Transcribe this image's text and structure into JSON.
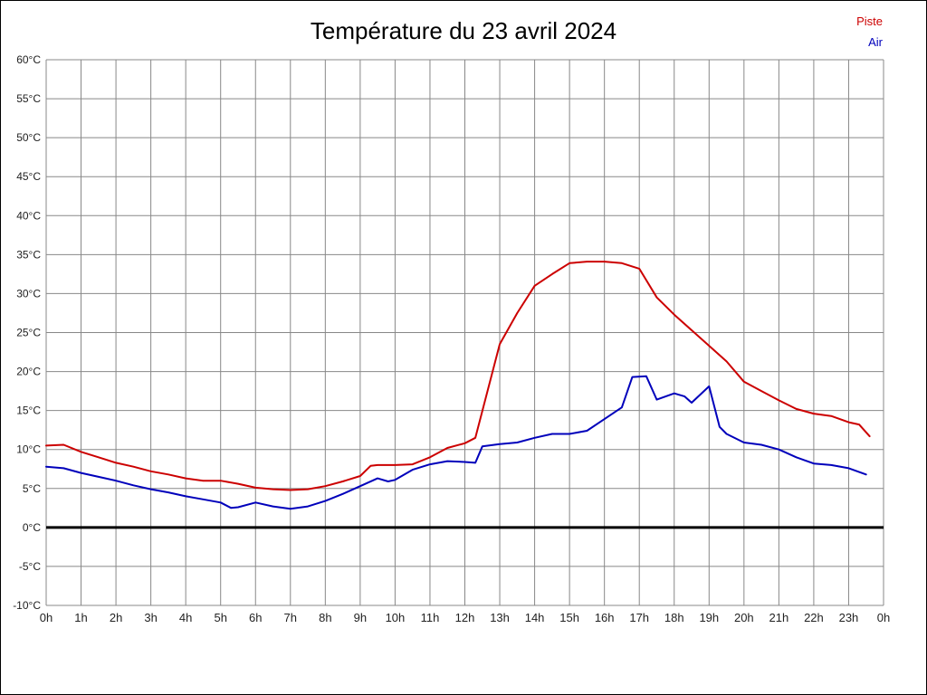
{
  "title": "Température du 23 avril 2024",
  "legend": {
    "piste": "Piste",
    "air": "Air"
  },
  "colors": {
    "piste": "#cc0000",
    "air": "#0000bb",
    "grid": "#888888",
    "zero_line": "#000000",
    "tick_text": "#222222",
    "background": "#ffffff"
  },
  "chart_data": {
    "type": "line",
    "title": "Température du 23 avril 2024",
    "xlabel": "",
    "ylabel": "",
    "xlim": [
      0,
      24
    ],
    "ylim": [
      -10,
      60
    ],
    "grid": true,
    "legend_position": "top-right",
    "x_tick_hours": [
      0,
      1,
      2,
      3,
      4,
      5,
      6,
      7,
      8,
      9,
      10,
      11,
      12,
      13,
      14,
      15,
      16,
      17,
      18,
      19,
      20,
      21,
      22,
      23,
      24
    ],
    "x_tick_labels": [
      "0h",
      "1h",
      "2h",
      "3h",
      "4h",
      "5h",
      "6h",
      "7h",
      "8h",
      "9h",
      "10h",
      "11h",
      "12h",
      "13h",
      "14h",
      "15h",
      "16h",
      "17h",
      "18h",
      "19h",
      "20h",
      "21h",
      "22h",
      "23h",
      "0h"
    ],
    "y_tick_values": [
      60,
      55,
      50,
      45,
      40,
      35,
      30,
      25,
      20,
      15,
      10,
      5,
      0,
      -5,
      -10
    ],
    "y_tick_labels": [
      "60°C",
      "55°C",
      "50°C",
      "45°C",
      "40°C",
      "35°C",
      "30°C",
      "25°C",
      "20°C",
      "15°C",
      "10°C",
      "5°C",
      "0°C",
      "-5°C",
      "-10°C"
    ],
    "zero_line": {
      "value": 0,
      "width": 3
    },
    "series": [
      {
        "name": "Piste",
        "color": "#cc0000",
        "x": [
          0,
          0.5,
          1,
          1.5,
          2,
          2.5,
          3,
          3.5,
          4,
          4.5,
          5,
          5.5,
          6,
          6.5,
          7,
          7.5,
          8,
          8.5,
          9,
          9.3,
          9.5,
          10,
          10.5,
          11,
          11.5,
          12,
          12.3,
          13,
          13.5,
          14,
          14.5,
          15,
          15.5,
          16,
          16.5,
          17,
          17.5,
          18,
          18.5,
          19,
          19.5,
          20,
          20.5,
          21,
          21.5,
          22,
          22.5,
          23,
          23.3,
          23.6
        ],
        "values": [
          10.5,
          10.6,
          9.7,
          9.0,
          8.3,
          7.8,
          7.2,
          6.8,
          6.3,
          6.0,
          6.0,
          5.6,
          5.1,
          4.9,
          4.8,
          4.9,
          5.3,
          5.9,
          6.6,
          7.9,
          8.0,
          8.0,
          8.1,
          9.0,
          10.2,
          10.8,
          11.5,
          23.5,
          27.5,
          31.0,
          32.5,
          33.9,
          34.1,
          34.1,
          33.9,
          33.2,
          29.5,
          27.3,
          25.3,
          23.3,
          21.3,
          18.7,
          17.5,
          16.3,
          15.2,
          14.6,
          14.3,
          13.5,
          13.2,
          11.7
        ]
      },
      {
        "name": "Air",
        "color": "#0000bb",
        "x": [
          0,
          0.5,
          1,
          1.5,
          2,
          2.5,
          3,
          3.5,
          4,
          4.5,
          5,
          5.3,
          5.5,
          6,
          6.5,
          7,
          7.5,
          8,
          8.5,
          9,
          9.5,
          9.8,
          10,
          10.5,
          11,
          11.5,
          12,
          12.3,
          12.5,
          13,
          13.5,
          14,
          14.5,
          15,
          15.5,
          16,
          16.5,
          16.8,
          17.2,
          17.5,
          18,
          18.3,
          18.5,
          19,
          19.3,
          19.5,
          20,
          20.5,
          21,
          21.5,
          22,
          22.5,
          23,
          23.5
        ],
        "values": [
          7.8,
          7.6,
          7.0,
          6.5,
          6.0,
          5.4,
          4.9,
          4.5,
          4.0,
          3.6,
          3.2,
          2.5,
          2.6,
          3.2,
          2.7,
          2.4,
          2.7,
          3.4,
          4.3,
          5.3,
          6.3,
          5.9,
          6.1,
          7.4,
          8.1,
          8.5,
          8.4,
          8.3,
          10.4,
          10.7,
          10.9,
          11.5,
          12.0,
          12.0,
          12.4,
          13.9,
          15.4,
          19.3,
          19.4,
          16.4,
          17.2,
          16.8,
          16.0,
          18.1,
          12.9,
          12.0,
          10.9,
          10.6,
          10.0,
          9.0,
          8.2,
          8.0,
          7.6,
          6.8
        ]
      }
    ]
  }
}
